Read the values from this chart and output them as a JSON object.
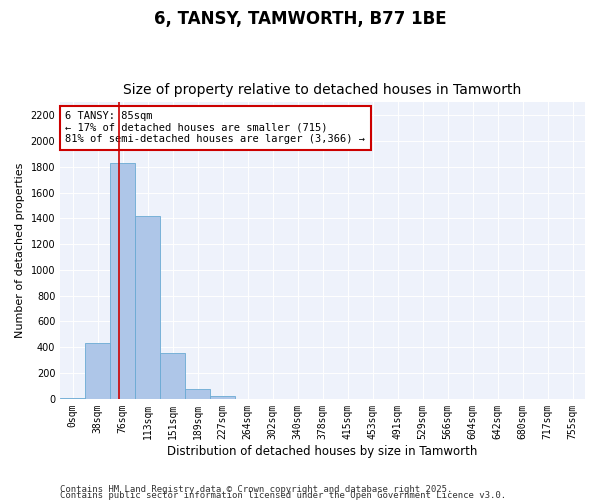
{
  "title1": "6, TANSY, TAMWORTH, B77 1BE",
  "title2": "Size of property relative to detached houses in Tamworth",
  "xlabel": "Distribution of detached houses by size in Tamworth",
  "ylabel": "Number of detached properties",
  "bar_labels": [
    "0sqm",
    "38sqm",
    "76sqm",
    "113sqm",
    "151sqm",
    "189sqm",
    "227sqm",
    "264sqm",
    "302sqm",
    "340sqm",
    "378sqm",
    "415sqm",
    "453sqm",
    "491sqm",
    "529sqm",
    "566sqm",
    "604sqm",
    "642sqm",
    "680sqm",
    "717sqm",
    "755sqm"
  ],
  "bar_values": [
    5,
    430,
    1830,
    1415,
    355,
    75,
    20,
    0,
    0,
    0,
    0,
    0,
    0,
    0,
    0,
    0,
    0,
    0,
    0,
    0,
    0
  ],
  "bar_color": "#aec6e8",
  "bar_edge_color": "#6aaad4",
  "vline_color": "#cc0000",
  "annotation_text": "6 TANSY: 85sqm\n← 17% of detached houses are smaller (715)\n81% of semi-detached houses are larger (3,366) →",
  "annotation_box_color": "#cc0000",
  "ylim": [
    0,
    2300
  ],
  "yticks": [
    0,
    200,
    400,
    600,
    800,
    1000,
    1200,
    1400,
    1600,
    1800,
    2000,
    2200
  ],
  "bg_color": "#eef2fb",
  "footer1": "Contains HM Land Registry data © Crown copyright and database right 2025.",
  "footer2": "Contains public sector information licensed under the Open Government Licence v3.0.",
  "title1_fontsize": 12,
  "title2_fontsize": 10,
  "xlabel_fontsize": 8.5,
  "ylabel_fontsize": 8,
  "tick_fontsize": 7,
  "footer_fontsize": 6.5,
  "annot_fontsize": 7.5
}
